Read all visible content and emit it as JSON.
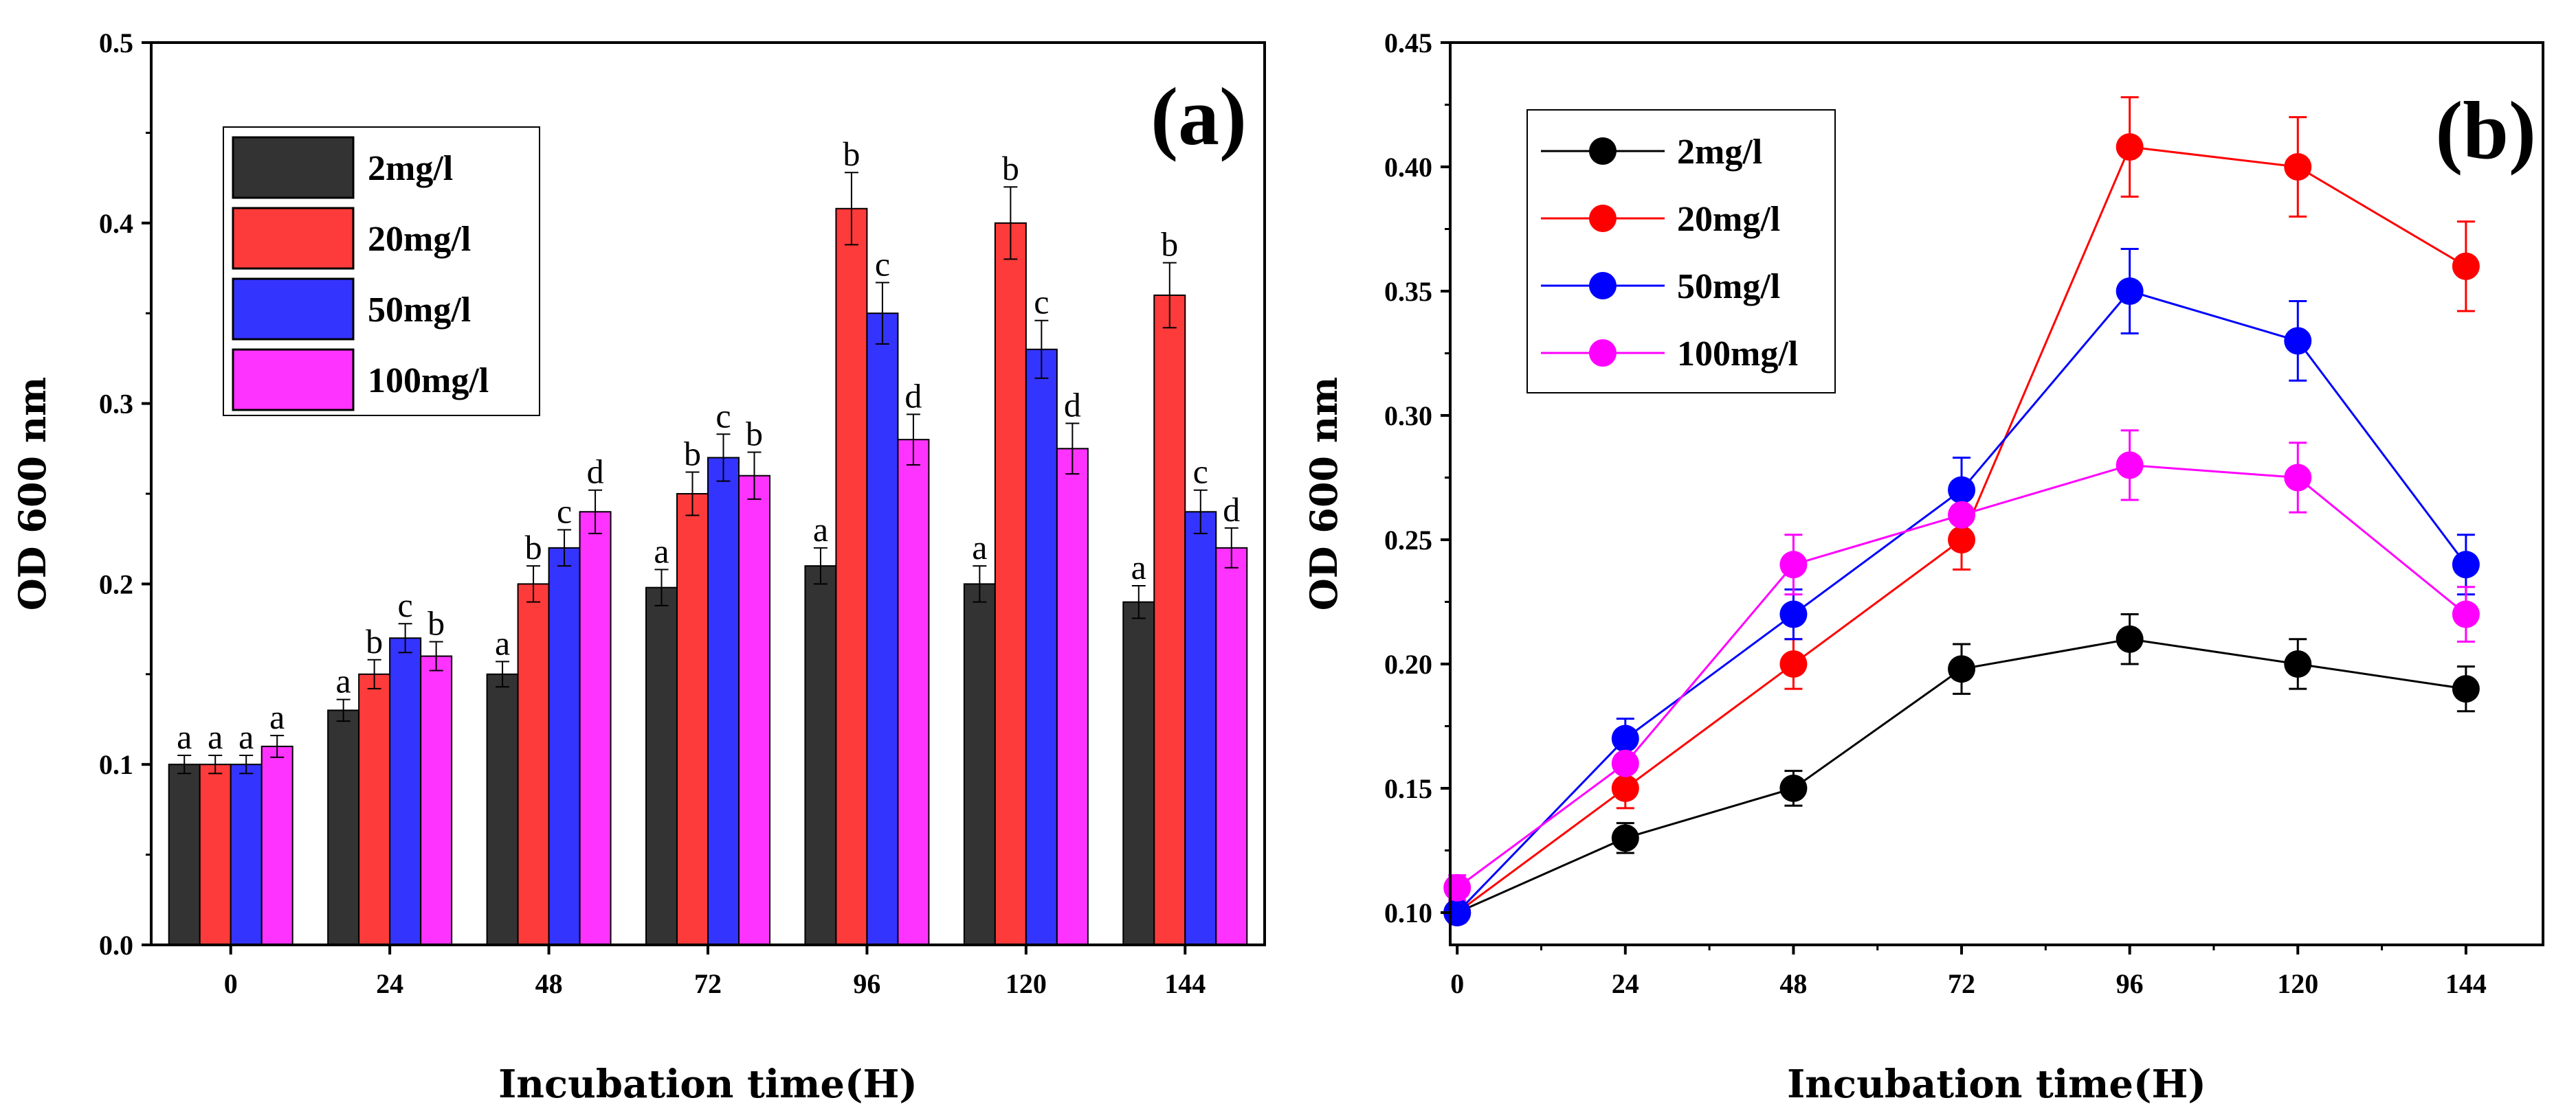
{
  "chart_data": [
    {
      "type": "bar",
      "panel_label": "(a)",
      "xlabel": "Incubation time(H)",
      "ylabel": "OD 600 nm",
      "categories": [
        "0",
        "24",
        "48",
        "72",
        "96",
        "120",
        "144"
      ],
      "ylim": [
        0,
        0.5
      ],
      "yticks": [
        "0.0",
        "0.1",
        "0.2",
        "0.3",
        "0.4",
        "0.5"
      ],
      "legend_position": "top-left",
      "series": [
        {
          "name": "2mg/l",
          "color": "#333333",
          "values": [
            0.1,
            0.13,
            0.15,
            0.198,
            0.21,
            0.2,
            0.19
          ],
          "errors": [
            0.005,
            0.006,
            0.007,
            0.01,
            0.01,
            0.01,
            0.009
          ],
          "letters": [
            "a",
            "a",
            "a",
            "a",
            "a",
            "a",
            "a"
          ]
        },
        {
          "name": "20mg/l",
          "color": "#fe3b3b",
          "values": [
            0.1,
            0.15,
            0.2,
            0.25,
            0.408,
            0.4,
            0.36
          ],
          "errors": [
            0.005,
            0.008,
            0.01,
            0.012,
            0.02,
            0.02,
            0.018
          ],
          "letters": [
            "a",
            "b",
            "b",
            "b",
            "b",
            "b",
            "b"
          ]
        },
        {
          "name": "50mg/l",
          "color": "#3434ff",
          "values": [
            0.1,
            0.17,
            0.22,
            0.27,
            0.35,
            0.33,
            0.24
          ],
          "errors": [
            0.005,
            0.008,
            0.01,
            0.013,
            0.017,
            0.016,
            0.012
          ],
          "letters": [
            "a",
            "c",
            "c",
            "c",
            "c",
            "c",
            "c"
          ]
        },
        {
          "name": "100mg/l",
          "color": "#ff33ff",
          "values": [
            0.11,
            0.16,
            0.24,
            0.26,
            0.28,
            0.275,
            0.22
          ],
          "errors": [
            0.006,
            0.008,
            0.012,
            0.013,
            0.014,
            0.014,
            0.011
          ],
          "letters": [
            "a",
            "b",
            "d",
            "b",
            "d",
            "d",
            "d"
          ]
        }
      ]
    },
    {
      "type": "line",
      "panel_label": "(b)",
      "xlabel": "Incubation time(H)",
      "ylabel": "OD 600 nm",
      "x": [
        0,
        24,
        48,
        72,
        96,
        120,
        144
      ],
      "xticks": [
        "0",
        "24",
        "48",
        "72",
        "96",
        "120",
        "144"
      ],
      "xlim": [
        -1,
        155
      ],
      "ylim": [
        0.087,
        0.45
      ],
      "yticks": [
        "0.10",
        "0.15",
        "0.20",
        "0.25",
        "0.30",
        "0.35",
        "0.40",
        "0.45"
      ],
      "legend_position": "top-left",
      "series": [
        {
          "name": "2mg/l",
          "color": "#000000",
          "values": [
            0.1,
            0.13,
            0.15,
            0.198,
            0.21,
            0.2,
            0.19
          ],
          "errors": [
            0.004,
            0.006,
            0.007,
            0.01,
            0.01,
            0.01,
            0.009
          ]
        },
        {
          "name": "20mg/l",
          "color": "#ff0000",
          "values": [
            0.1,
            0.15,
            0.2,
            0.25,
            0.408,
            0.4,
            0.36
          ],
          "errors": [
            0.004,
            0.008,
            0.01,
            0.012,
            0.02,
            0.02,
            0.018
          ]
        },
        {
          "name": "50mg/l",
          "color": "#0000ff",
          "values": [
            0.1,
            0.17,
            0.22,
            0.27,
            0.35,
            0.33,
            0.24
          ],
          "errors": [
            0.004,
            0.008,
            0.01,
            0.013,
            0.017,
            0.016,
            0.012
          ]
        },
        {
          "name": "100mg/l",
          "color": "#ff00ff",
          "values": [
            0.11,
            0.16,
            0.24,
            0.26,
            0.28,
            0.275,
            0.22
          ],
          "errors": [
            0.005,
            0.008,
            0.012,
            0.013,
            0.014,
            0.014,
            0.011
          ]
        }
      ]
    }
  ]
}
